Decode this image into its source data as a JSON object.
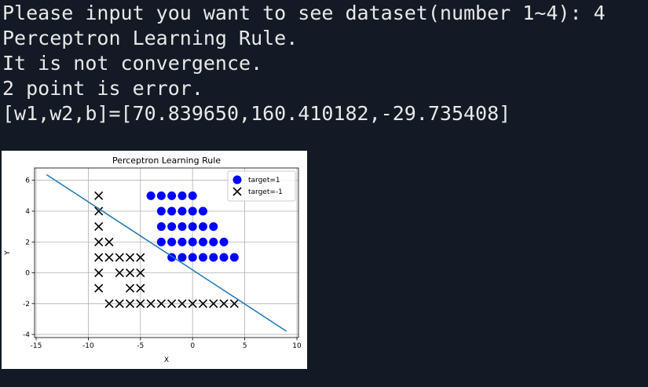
{
  "terminal": {
    "lines": [
      "Please input you want to see dataset(number 1~4): 4",
      "Perceptron Learning Rule.",
      "It is not convergence.",
      "2 point is error.",
      "[w1,w2,b]=[70.839650,160.410182,-29.735408]"
    ]
  },
  "chart_data": {
    "type": "scatter",
    "title": "Perceptron Learning Rule",
    "x_label": "X",
    "y_label": "Y",
    "xlim": [
      -15.15,
      10.15
    ],
    "ylim": [
      -4.2,
      6.8
    ],
    "xticks": [
      -15,
      -10,
      -5,
      0,
      5,
      10
    ],
    "yticks": [
      -4,
      -2,
      0,
      2,
      4,
      6
    ],
    "grid": true,
    "legend": "upper right",
    "series": [
      {
        "name": "target=1",
        "marker": "o",
        "color": "#0000ff",
        "x": [
          -4,
          -3,
          -2,
          -1,
          0,
          -3,
          -2,
          -1,
          0,
          1,
          -3,
          -2,
          -1,
          0,
          1,
          2,
          -3,
          -2,
          -1,
          0,
          1,
          2,
          3,
          -2,
          -1,
          0,
          1,
          2,
          3,
          4
        ],
        "values": [
          5,
          5,
          5,
          5,
          5,
          4,
          4,
          4,
          4,
          4,
          3,
          3,
          3,
          3,
          3,
          3,
          2,
          2,
          2,
          2,
          2,
          2,
          2,
          1,
          1,
          1,
          1,
          1,
          1,
          1
        ]
      },
      {
        "name": "target=-1",
        "marker": "x",
        "color": "#000000",
        "x": [
          -9,
          -9,
          -9,
          -9,
          -8,
          -9,
          -8,
          -7,
          -6,
          -5,
          -9,
          -7,
          -6,
          -5,
          -9,
          -6,
          -5,
          -8,
          -7,
          -6,
          -5,
          -4,
          -3,
          -2,
          -1,
          0,
          1,
          2,
          3,
          4
        ],
        "values": [
          5,
          4,
          3,
          2,
          2,
          1,
          1,
          1,
          1,
          1,
          0,
          0,
          0,
          0,
          -1,
          -1,
          -1,
          -2,
          -2,
          -2,
          -2,
          -2,
          -2,
          -2,
          -2,
          -2,
          -2,
          -2,
          -2,
          -2
        ]
      },
      {
        "marker": "line",
        "color": "#1f77b4",
        "x": [
          -14,
          9
        ],
        "values": [
          6.37,
          -3.79
        ]
      }
    ]
  }
}
